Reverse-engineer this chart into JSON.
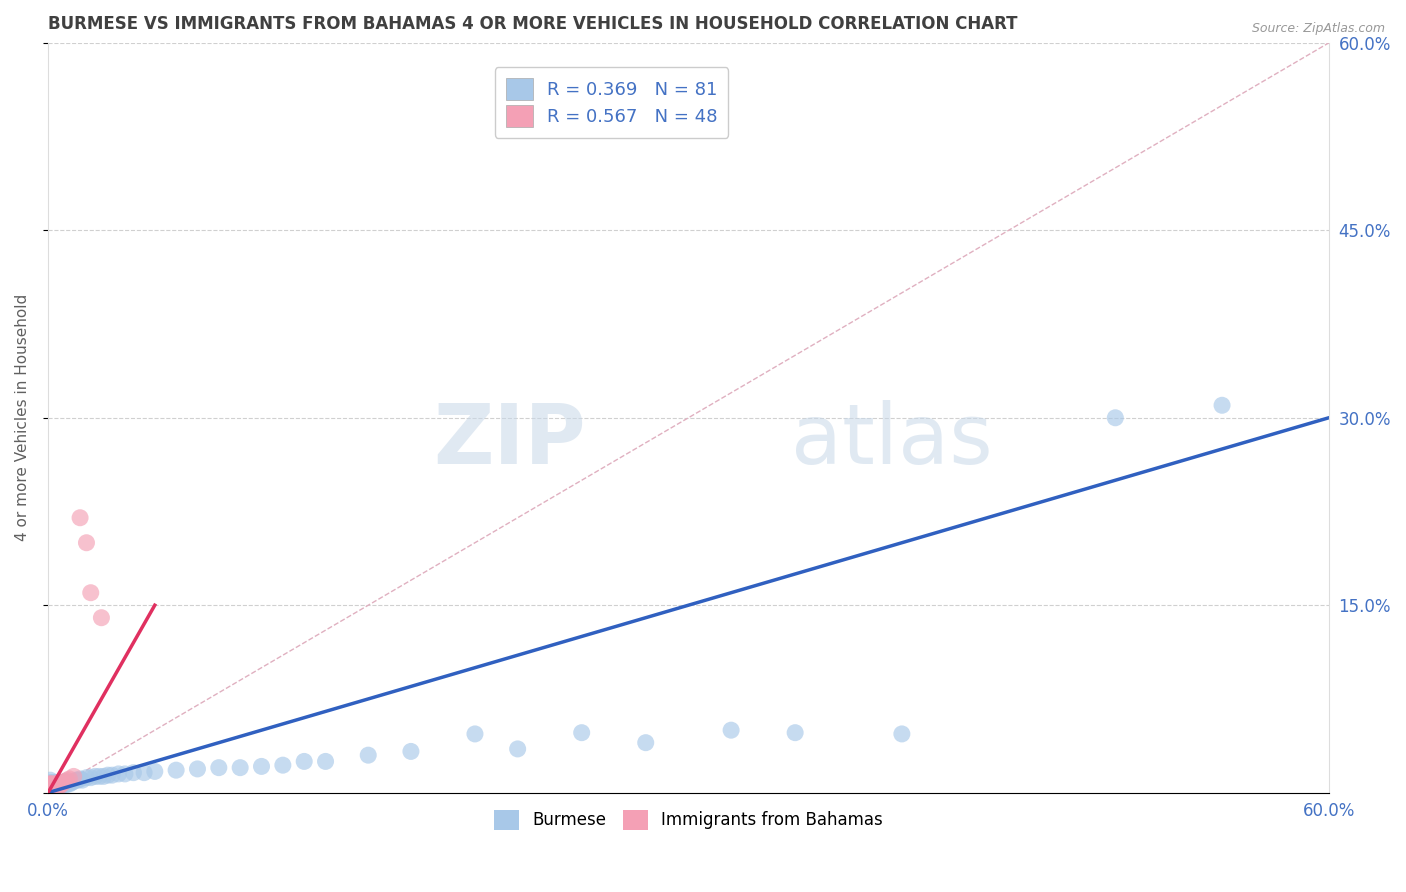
{
  "title": "BURMESE VS IMMIGRANTS FROM BAHAMAS 4 OR MORE VEHICLES IN HOUSEHOLD CORRELATION CHART",
  "source": "Source: ZipAtlas.com",
  "ylabel": "4 or more Vehicles in Household",
  "xlim": [
    0.0,
    0.6
  ],
  "ylim": [
    0.0,
    0.6
  ],
  "xticks": [
    0.0,
    0.6
  ],
  "xticklabels": [
    "0.0%",
    "60.0%"
  ],
  "yticks": [
    0.0,
    0.15,
    0.3,
    0.45,
    0.6
  ],
  "right_yticklabels": [
    "",
    "15.0%",
    "30.0%",
    "45.0%",
    "60.0%"
  ],
  "burmese_color": "#A8C8E8",
  "bahamas_color": "#F4A0B5",
  "burmese_R": 0.369,
  "burmese_N": 81,
  "bahamas_R": 0.567,
  "bahamas_N": 48,
  "trend_blue_color": "#3060C0",
  "trend_pink_color": "#E03060",
  "watermark_zip": "ZIP",
  "watermark_atlas": "atlas",
  "background_color": "#FFFFFF",
  "title_color": "#404040",
  "axis_label_color": "#606060",
  "tick_color": "#4472C4",
  "legend_text_color": "#4472C4",
  "burmese_x": [
    0.001,
    0.001,
    0.001,
    0.001,
    0.001,
    0.002,
    0.002,
    0.002,
    0.002,
    0.002,
    0.002,
    0.002,
    0.003,
    0.003,
    0.003,
    0.003,
    0.003,
    0.003,
    0.003,
    0.004,
    0.004,
    0.004,
    0.004,
    0.004,
    0.004,
    0.005,
    0.005,
    0.005,
    0.005,
    0.005,
    0.006,
    0.006,
    0.006,
    0.006,
    0.007,
    0.007,
    0.007,
    0.008,
    0.008,
    0.008,
    0.009,
    0.009,
    0.01,
    0.01,
    0.011,
    0.012,
    0.013,
    0.014,
    0.015,
    0.016,
    0.018,
    0.02,
    0.022,
    0.024,
    0.026,
    0.028,
    0.03,
    0.033,
    0.036,
    0.04,
    0.045,
    0.05,
    0.06,
    0.07,
    0.08,
    0.09,
    0.1,
    0.11,
    0.12,
    0.13,
    0.15,
    0.17,
    0.2,
    0.22,
    0.25,
    0.28,
    0.32,
    0.35,
    0.4,
    0.5,
    0.55
  ],
  "burmese_y": [
    0.005,
    0.007,
    0.008,
    0.01,
    0.005,
    0.005,
    0.006,
    0.007,
    0.008,
    0.005,
    0.006,
    0.007,
    0.004,
    0.005,
    0.006,
    0.007,
    0.008,
    0.005,
    0.006,
    0.005,
    0.006,
    0.007,
    0.008,
    0.005,
    0.006,
    0.005,
    0.006,
    0.007,
    0.008,
    0.005,
    0.005,
    0.006,
    0.007,
    0.008,
    0.006,
    0.007,
    0.008,
    0.006,
    0.007,
    0.009,
    0.007,
    0.008,
    0.007,
    0.008,
    0.008,
    0.009,
    0.01,
    0.01,
    0.011,
    0.01,
    0.012,
    0.012,
    0.013,
    0.013,
    0.013,
    0.014,
    0.014,
    0.015,
    0.015,
    0.016,
    0.016,
    0.017,
    0.018,
    0.019,
    0.02,
    0.02,
    0.021,
    0.022,
    0.025,
    0.025,
    0.03,
    0.033,
    0.047,
    0.035,
    0.048,
    0.04,
    0.05,
    0.048,
    0.047,
    0.3,
    0.31
  ],
  "bahamas_x": [
    0.001,
    0.001,
    0.001,
    0.001,
    0.001,
    0.001,
    0.001,
    0.001,
    0.001,
    0.001,
    0.001,
    0.001,
    0.001,
    0.001,
    0.001,
    0.001,
    0.001,
    0.002,
    0.002,
    0.002,
    0.002,
    0.002,
    0.002,
    0.002,
    0.003,
    0.003,
    0.003,
    0.003,
    0.003,
    0.003,
    0.004,
    0.004,
    0.004,
    0.005,
    0.005,
    0.005,
    0.005,
    0.006,
    0.006,
    0.007,
    0.008,
    0.009,
    0.01,
    0.012,
    0.015,
    0.018,
    0.02,
    0.025
  ],
  "bahamas_y": [
    0.003,
    0.004,
    0.005,
    0.006,
    0.007,
    0.004,
    0.005,
    0.006,
    0.007,
    0.003,
    0.004,
    0.005,
    0.006,
    0.003,
    0.004,
    0.005,
    0.006,
    0.003,
    0.004,
    0.005,
    0.006,
    0.007,
    0.004,
    0.005,
    0.004,
    0.005,
    0.006,
    0.007,
    0.004,
    0.005,
    0.004,
    0.006,
    0.007,
    0.005,
    0.006,
    0.007,
    0.008,
    0.006,
    0.007,
    0.008,
    0.009,
    0.01,
    0.011,
    0.013,
    0.22,
    0.2,
    0.16,
    0.14
  ],
  "blue_trend_x": [
    0.0,
    0.6
  ],
  "blue_trend_y": [
    0.0,
    0.3
  ],
  "pink_trend_x": [
    0.0,
    0.05
  ],
  "pink_trend_y": [
    0.0,
    0.15
  ]
}
